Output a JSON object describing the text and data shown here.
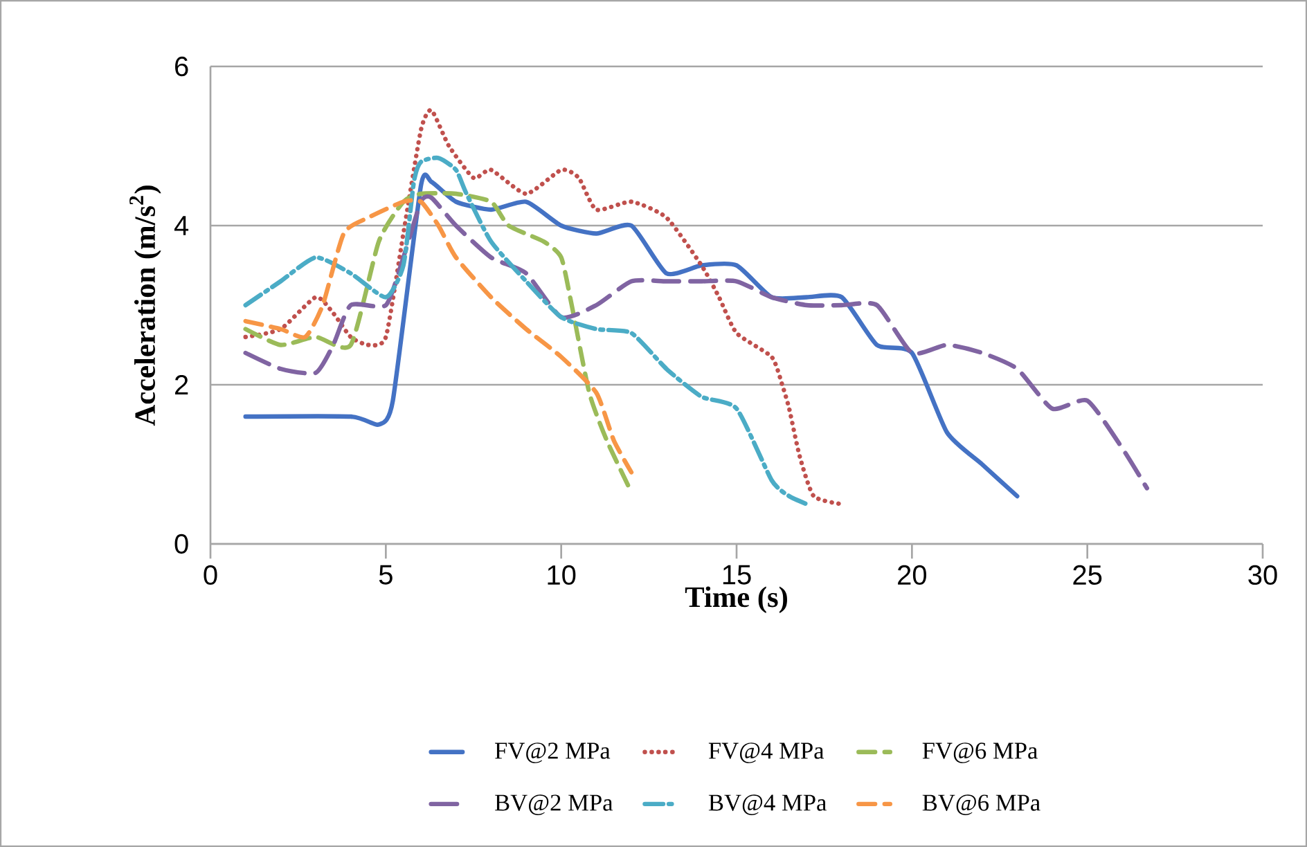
{
  "chart_data": {
    "type": "line",
    "xlabel": "Time (s)",
    "ylabel": "Acceleration (m/s$^{2}$)",
    "xlim": [
      0,
      30
    ],
    "xticks": [
      0,
      5,
      10,
      15,
      20,
      25,
      30
    ],
    "ylim": [
      0,
      6
    ],
    "yticks": [
      0,
      2,
      4,
      6
    ],
    "grid": "y",
    "legend": "bottom",
    "marker": "none",
    "series": [
      {
        "name": "FV@2 MPa",
        "color": "#4472c4",
        "line_style": "solid",
        "x": [
          1,
          4,
          4.8,
          5.2,
          6,
          6.3,
          7,
          8,
          9,
          10,
          11,
          12,
          13,
          14,
          15,
          16,
          17,
          18,
          19,
          20,
          21,
          22,
          23
        ],
        "values": [
          1.6,
          1.6,
          1.5,
          1.8,
          4.5,
          4.55,
          4.3,
          4.2,
          4.3,
          4.0,
          3.9,
          4.0,
          3.4,
          3.5,
          3.5,
          3.1,
          3.1,
          3.1,
          2.5,
          2.4,
          1.4,
          1.0,
          0.6
        ]
      },
      {
        "name": "FV@4 MPa",
        "color": "#c0504d",
        "line_style": "dotted",
        "x": [
          1,
          2,
          3,
          3.5,
          4,
          4.5,
          5,
          5.5,
          6,
          6.3,
          6.8,
          7.5,
          8,
          9,
          10,
          10.5,
          11,
          12,
          13,
          14,
          14.5,
          15,
          16,
          16.3,
          16.5,
          16.8,
          17.2,
          18
        ],
        "values": [
          2.6,
          2.7,
          3.1,
          2.9,
          2.6,
          2.5,
          2.6,
          3.9,
          5.2,
          5.45,
          5.0,
          4.6,
          4.7,
          4.4,
          4.7,
          4.6,
          4.2,
          4.3,
          4.1,
          3.5,
          3.1,
          2.65,
          2.35,
          2.0,
          1.7,
          1.1,
          0.6,
          0.5
        ]
      },
      {
        "name": "FV@6 MPa",
        "color": "#9bbb59",
        "line_style": "dashed",
        "x": [
          1,
          2,
          3,
          4,
          4.8,
          5.5,
          6,
          7,
          8,
          8.5,
          9.5,
          10,
          10.3,
          10.8,
          11.3,
          12
        ],
        "values": [
          2.7,
          2.5,
          2.6,
          2.5,
          3.8,
          4.3,
          4.4,
          4.4,
          4.3,
          4.0,
          3.8,
          3.6,
          3.0,
          1.9,
          1.3,
          0.65
        ]
      },
      {
        "name": "BV@2 MPa",
        "color": "#8064a2",
        "line_style": "dashed",
        "x": [
          1,
          2,
          3,
          3.5,
          4,
          5,
          5.5,
          6,
          6.3,
          7,
          8,
          9,
          10,
          11,
          12,
          13,
          14,
          15,
          16,
          17,
          18,
          19,
          20,
          21,
          22,
          23,
          24,
          25,
          26,
          26.7
        ],
        "values": [
          2.4,
          2.2,
          2.15,
          2.5,
          3.0,
          3.0,
          3.6,
          4.3,
          4.35,
          4.0,
          3.6,
          3.4,
          2.85,
          3.0,
          3.3,
          3.3,
          3.3,
          3.3,
          3.1,
          3.0,
          3.0,
          3.0,
          2.4,
          2.5,
          2.4,
          2.2,
          1.7,
          1.8,
          1.2,
          0.7
        ]
      },
      {
        "name": "BV@4 MPa",
        "color": "#4bacc6",
        "line_style": "dashed",
        "x": [
          1,
          2,
          3,
          4,
          5,
          5.5,
          5.8,
          6,
          6.5,
          7,
          7.3,
          8,
          9,
          10,
          11,
          12,
          13,
          14,
          15,
          16,
          16.5,
          17
        ],
        "values": [
          3.0,
          3.3,
          3.6,
          3.4,
          3.1,
          3.5,
          4.55,
          4.8,
          4.85,
          4.7,
          4.4,
          3.8,
          3.3,
          2.85,
          2.7,
          2.65,
          2.2,
          1.85,
          1.7,
          0.8,
          0.6,
          0.5
        ]
      },
      {
        "name": "BV@6 MPa",
        "color": "#f79646",
        "line_style": "dashed",
        "x": [
          1,
          2,
          2.7,
          3.2,
          3.8,
          4.5,
          5.5,
          6,
          6.5,
          7,
          8,
          9,
          10,
          11,
          11.5,
          12
        ],
        "values": [
          2.8,
          2.7,
          2.6,
          3.0,
          3.9,
          4.1,
          4.3,
          4.3,
          4.0,
          3.6,
          3.1,
          2.7,
          2.35,
          1.9,
          1.3,
          0.9
        ]
      }
    ]
  }
}
